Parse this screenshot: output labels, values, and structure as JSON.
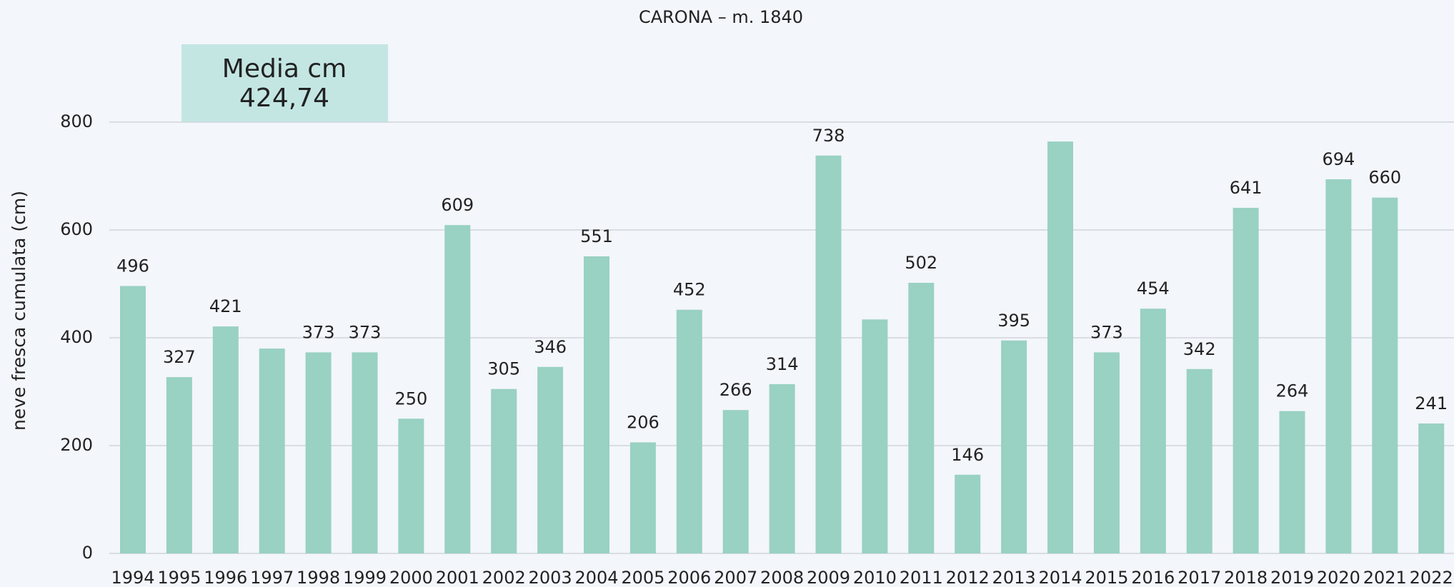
{
  "chart_data": {
    "type": "bar",
    "title": "CARONA – m. 1840",
    "y_label": "neve fresca cumulata (cm)",
    "annotation": [
      "Media cm",
      "424,74"
    ],
    "categories": [
      "1994",
      "1995",
      "1996",
      "1997",
      "1998",
      "1999",
      "2000",
      "2001",
      "2002",
      "2003",
      "2004",
      "2005",
      "2006",
      "2007",
      "2008",
      "2009",
      "2010",
      "2011",
      "2012",
      "2013",
      "2014",
      "2015",
      "2016",
      "2017",
      "2018",
      "2019",
      "2020",
      "2021",
      "2022"
    ],
    "values": [
      496,
      327,
      421,
      380,
      373,
      373,
      250,
      609,
      305,
      346,
      551,
      206,
      452,
      266,
      314,
      738,
      434,
      502,
      146,
      395,
      764,
      373,
      454,
      342,
      641,
      264,
      694,
      660,
      241
    ],
    "value_labels": [
      "496",
      "327",
      "421",
      null,
      "373",
      "373",
      "250",
      "609",
      "305",
      "346",
      "551",
      "206",
      "452",
      "266",
      "314",
      "738",
      null,
      "502",
      "146",
      "395",
      null,
      "373",
      "454",
      "342",
      "641",
      "264",
      "694",
      "660",
      "241"
    ],
    "color": "#99d1c2",
    "ylim": [
      0,
      800
    ],
    "yticks": [
      0,
      200,
      400,
      600,
      800
    ],
    "grid": true
  }
}
